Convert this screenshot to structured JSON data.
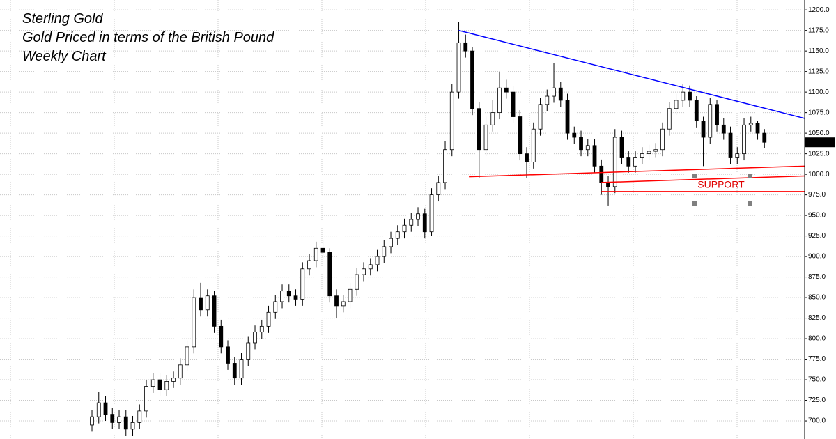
{
  "chart_data": {
    "type": "candlestick",
    "title_lines": [
      "Sterling Gold",
      "Gold Priced in terms of the British Pound",
      "Weekly Chart"
    ],
    "annotation": "SUPPORT",
    "up_color": "#ffffff",
    "down_color": "#000000",
    "grid": true,
    "xlim": [
      -13.54,
      104.92
    ],
    "ylim": [
      678,
      1212
    ],
    "yticks": [
      {
        "value": 700,
        "label": "700.0"
      },
      {
        "value": 725,
        "label": "725.0"
      },
      {
        "value": 750,
        "label": "750.0"
      },
      {
        "value": 775,
        "label": "775.0"
      },
      {
        "value": 800,
        "label": "800.0"
      },
      {
        "value": 825,
        "label": "825.0"
      },
      {
        "value": 850,
        "label": "850.0"
      },
      {
        "value": 875,
        "label": "875.0"
      },
      {
        "value": 900,
        "label": "900.0"
      },
      {
        "value": 925,
        "label": "925.0"
      },
      {
        "value": 950,
        "label": "950.0"
      },
      {
        "value": 975,
        "label": "975.0"
      },
      {
        "value": 1000,
        "label": "1000.0"
      },
      {
        "value": 1025,
        "label": "1025.0"
      },
      {
        "value": 1050,
        "label": "1050.0"
      },
      {
        "value": 1075,
        "label": "1075.0"
      },
      {
        "value": 1100,
        "label": "1100.0"
      },
      {
        "value": 1125,
        "label": "1125.0"
      },
      {
        "value": 1150,
        "label": "1150.0"
      },
      {
        "value": 1175,
        "label": "1175.0"
      },
      {
        "value": 1200,
        "label": "1200.0"
      }
    ],
    "open": [
      695,
      705,
      722,
      708,
      698,
      705,
      690,
      698,
      712,
      742,
      750,
      738,
      748,
      752,
      768,
      790,
      850,
      835,
      852,
      815,
      790,
      770,
      752,
      775,
      795,
      808,
      815,
      832,
      845,
      858,
      852,
      848,
      885,
      895,
      910,
      905,
      852,
      840,
      845,
      860,
      878,
      885,
      890,
      900,
      912,
      922,
      930,
      938,
      945,
      952,
      930,
      975,
      990,
      1030,
      1100,
      1160,
      1150,
      1080,
      1030,
      1060,
      1075,
      1105,
      1100,
      1070,
      1025,
      1015,
      1055,
      1085,
      1095,
      1105,
      1090,
      1050,
      1045,
      1030,
      1035,
      1010,
      990,
      985,
      1045,
      1020,
      1010,
      1020,
      1025,
      1028,
      1030,
      1055,
      1080,
      1090,
      1100,
      1090,
      1065,
      1045,
      1085,
      1060,
      1050,
      1020,
      1025,
      1060,
      1062,
      1050
    ],
    "high": [
      713,
      735,
      730,
      716,
      713,
      713,
      706,
      720,
      750,
      758,
      758,
      756,
      760,
      776,
      798,
      860,
      868,
      860,
      858,
      823,
      798,
      778,
      783,
      803,
      816,
      823,
      840,
      853,
      866,
      866,
      860,
      893,
      903,
      918,
      920,
      910,
      860,
      853,
      868,
      886,
      893,
      898,
      908,
      920,
      930,
      938,
      946,
      953,
      960,
      958,
      983,
      998,
      1040,
      1110,
      1185,
      1170,
      1155,
      1088,
      1070,
      1090,
      1125,
      1115,
      1108,
      1078,
      1033,
      1063,
      1093,
      1103,
      1135,
      1112,
      1098,
      1058,
      1053,
      1043,
      1043,
      1018,
      998,
      1055,
      1053,
      1028,
      1028,
      1033,
      1036,
      1038,
      1063,
      1088,
      1098,
      1110,
      1108,
      1095,
      1070,
      1093,
      1090,
      1068,
      1058,
      1033,
      1068,
      1070,
      1065,
      1055
    ],
    "low": [
      687,
      697,
      700,
      690,
      690,
      682,
      682,
      690,
      704,
      734,
      730,
      730,
      740,
      744,
      760,
      782,
      827,
      827,
      807,
      782,
      762,
      744,
      744,
      767,
      787,
      800,
      807,
      824,
      837,
      844,
      840,
      840,
      877,
      887,
      897,
      844,
      825,
      832,
      837,
      852,
      870,
      877,
      882,
      892,
      904,
      914,
      922,
      930,
      937,
      922,
      925,
      967,
      982,
      1022,
      1092,
      1142,
      1072,
      995,
      1022,
      1052,
      1067,
      1092,
      1062,
      1017,
      995,
      1007,
      1047,
      1077,
      1087,
      1082,
      1042,
      1037,
      1022,
      1022,
      1002,
      975,
      962,
      977,
      1012,
      1002,
      1002,
      1012,
      1017,
      1020,
      1022,
      1047,
      1072,
      1082,
      1082,
      1057,
      1010,
      1037,
      1052,
      1042,
      1012,
      1012,
      1017,
      1052,
      1042,
      1032
    ],
    "close": [
      705,
      722,
      708,
      698,
      705,
      690,
      698,
      712,
      742,
      750,
      738,
      748,
      752,
      768,
      790,
      850,
      835,
      852,
      815,
      790,
      770,
      752,
      775,
      795,
      808,
      815,
      832,
      845,
      858,
      852,
      848,
      885,
      895,
      910,
      905,
      852,
      840,
      845,
      860,
      878,
      885,
      890,
      900,
      912,
      922,
      930,
      938,
      945,
      952,
      930,
      975,
      990,
      1030,
      1100,
      1160,
      1150,
      1080,
      1030,
      1060,
      1075,
      1105,
      1100,
      1070,
      1025,
      1015,
      1055,
      1085,
      1095,
      1105,
      1090,
      1050,
      1045,
      1030,
      1035,
      1010,
      990,
      985,
      1045,
      1020,
      1010,
      1020,
      1025,
      1028,
      1030,
      1055,
      1080,
      1090,
      1100,
      1090,
      1065,
      1045,
      1085,
      1060,
      1050,
      1020,
      1025,
      1060,
      1062,
      1050,
      1038.9
    ],
    "trendlines": [
      {
        "x": [
          54,
          104.92
        ],
        "y": [
          1175,
          1068
        ],
        "color": "#0000ff"
      },
      {
        "x": [
          55.5,
          104.92
        ],
        "y": [
          997,
          1010
        ],
        "color": "#ff0000"
      },
      {
        "x": [
          75,
          104.92
        ],
        "y": [
          990,
          998
        ],
        "color": "#ff0000"
      },
      {
        "x": [
          75,
          104.92
        ],
        "y": [
          979,
          979
        ],
        "color": "#ff0000"
      }
    ]
  }
}
